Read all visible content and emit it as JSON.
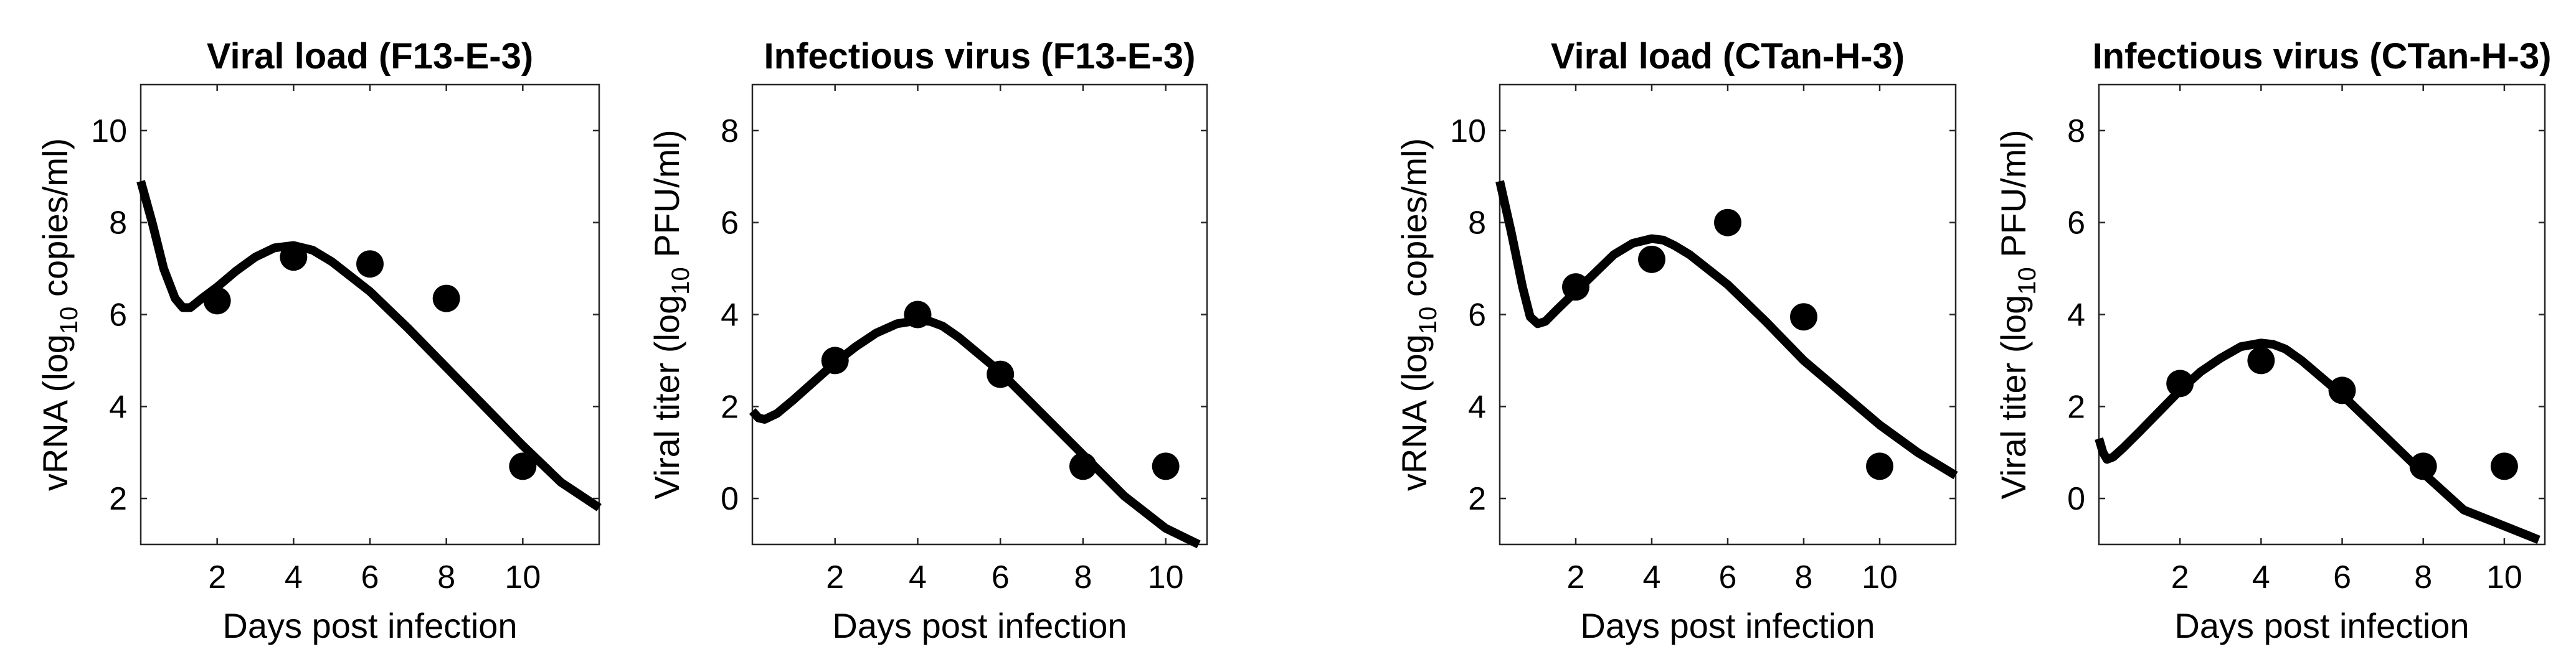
{
  "chart_data": [
    {
      "type": "line+scatter",
      "title": "Viral load (F13-E-3)",
      "xlabel": "Days post infection",
      "ylabel_pre": "vRNA (log",
      "ylabel_sub": "10",
      "ylabel_post": " copies/ml)",
      "xlim": [
        0,
        12
      ],
      "ylim": [
        1,
        11
      ],
      "xticks": [
        2,
        4,
        6,
        8,
        10
      ],
      "yticks": [
        2,
        4,
        6,
        8,
        10
      ],
      "points": {
        "x": [
          2,
          4,
          6,
          8,
          10
        ],
        "y": [
          6.3,
          7.25,
          7.1,
          6.35,
          2.7
        ]
      },
      "curve": {
        "x": [
          0,
          0.3,
          0.6,
          0.9,
          1.1,
          1.3,
          1.6,
          2,
          2.5,
          3,
          3.5,
          4,
          4.5,
          5,
          6,
          7,
          8,
          9,
          10,
          11,
          12
        ],
        "y": [
          8.9,
          8.0,
          7.0,
          6.35,
          6.15,
          6.15,
          6.35,
          6.6,
          6.95,
          7.25,
          7.45,
          7.5,
          7.4,
          7.15,
          6.5,
          5.7,
          4.85,
          4.0,
          3.15,
          2.35,
          1.8
        ]
      }
    },
    {
      "type": "line+scatter",
      "title": "Infectious virus (F13-E-3)",
      "xlabel": "Days post infection",
      "ylabel_pre": "Viral titer (log",
      "ylabel_sub": "10",
      "ylabel_post": " PFU/ml)",
      "xlim": [
        0,
        11
      ],
      "ylim": [
        -1,
        9
      ],
      "xticks": [
        2,
        4,
        6,
        8,
        10
      ],
      "yticks": [
        0,
        2,
        4,
        6,
        8
      ],
      "points": {
        "x": [
          2,
          4,
          6,
          8,
          10
        ],
        "y": [
          3.0,
          4.0,
          2.7,
          0.7,
          0.7
        ]
      },
      "curve": {
        "x": [
          0,
          0.15,
          0.3,
          0.6,
          1.0,
          1.5,
          2,
          2.5,
          3,
          3.5,
          4,
          4.3,
          4.6,
          5,
          6,
          7,
          8,
          9,
          10,
          10.8
        ],
        "y": [
          1.9,
          1.75,
          1.72,
          1.85,
          2.15,
          2.55,
          2.95,
          3.3,
          3.6,
          3.8,
          3.87,
          3.85,
          3.75,
          3.5,
          2.75,
          1.85,
          0.95,
          0.05,
          -0.65,
          -1.0
        ]
      }
    },
    {
      "type": "line+scatter",
      "title": "Viral load (CTan-H-3)",
      "xlabel": "Days post infection",
      "ylabel_pre": "vRNA (log",
      "ylabel_sub": "10",
      "ylabel_post": " copies/ml)",
      "xlim": [
        0,
        12
      ],
      "ylim": [
        1,
        11
      ],
      "xticks": [
        2,
        4,
        6,
        8,
        10
      ],
      "yticks": [
        2,
        4,
        6,
        8,
        10
      ],
      "points": {
        "x": [
          2,
          4,
          6,
          8,
          10
        ],
        "y": [
          6.6,
          7.2,
          8.0,
          5.95,
          2.7
        ]
      },
      "curve": {
        "x": [
          0,
          0.3,
          0.6,
          0.8,
          1.0,
          1.2,
          1.5,
          2,
          2.5,
          3,
          3.5,
          4,
          4.3,
          4.6,
          5,
          6,
          7,
          8,
          9,
          10,
          11,
          12
        ],
        "y": [
          8.9,
          7.8,
          6.6,
          5.95,
          5.8,
          5.85,
          6.1,
          6.5,
          6.9,
          7.3,
          7.55,
          7.65,
          7.62,
          7.5,
          7.3,
          6.65,
          5.85,
          5.0,
          4.3,
          3.6,
          3.0,
          2.5
        ]
      }
    },
    {
      "type": "line+scatter",
      "title": "Infectious virus (CTan-H-3)",
      "xlabel": "Days post infection",
      "ylabel_pre": "Viral titer (log",
      "ylabel_sub": "10",
      "ylabel_post": " PFU/ml)",
      "xlim": [
        0,
        11
      ],
      "ylim": [
        -1,
        9
      ],
      "xticks": [
        2,
        4,
        6,
        8,
        10
      ],
      "yticks": [
        0,
        2,
        4,
        6,
        8
      ],
      "points": {
        "x": [
          2,
          4,
          6,
          8,
          10
        ],
        "y": [
          2.5,
          3.0,
          2.35,
          0.7,
          0.7
        ]
      },
      "curve": {
        "x": [
          0,
          0.1,
          0.2,
          0.35,
          0.6,
          1.0,
          1.5,
          2,
          2.5,
          3,
          3.5,
          4,
          4.3,
          4.6,
          5,
          6,
          7,
          8,
          9,
          10,
          10.85
        ],
        "y": [
          1.3,
          1.0,
          0.85,
          0.9,
          1.1,
          1.45,
          1.9,
          2.35,
          2.75,
          3.05,
          3.3,
          3.38,
          3.35,
          3.25,
          3.0,
          2.25,
          1.4,
          0.55,
          -0.25,
          -0.6,
          -0.9
        ]
      }
    }
  ]
}
